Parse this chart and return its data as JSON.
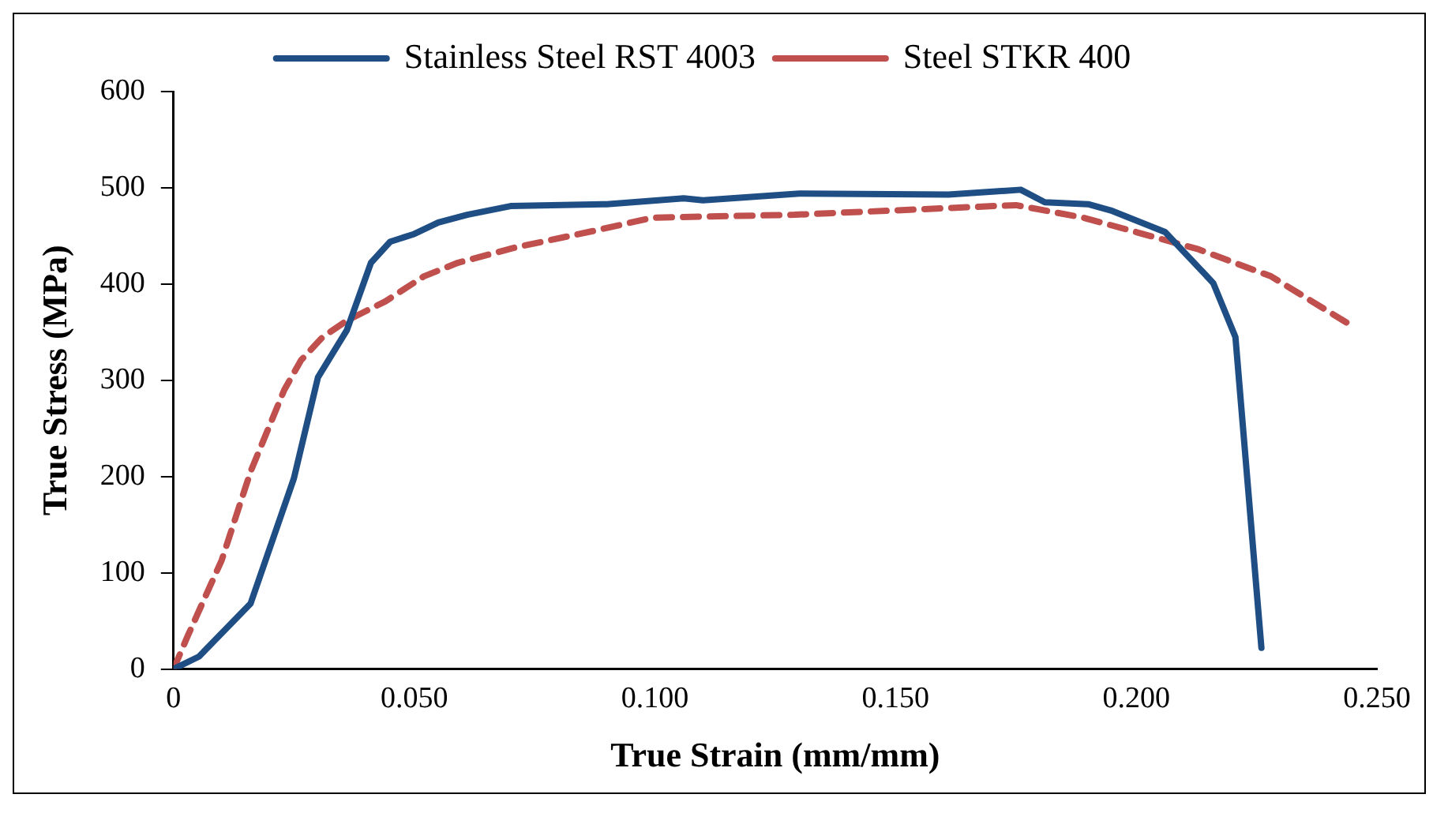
{
  "chart_data": {
    "type": "line",
    "xlabel": "True Strain (mm/mm)",
    "ylabel": "True Stress (MPa)",
    "xlim": [
      0,
      0.25
    ],
    "xticks": [
      0,
      {
        "value": 0.05,
        "label": "0.050"
      },
      {
        "value": 0.1,
        "label": "0.100"
      },
      {
        "value": 0.15,
        "label": "0.150"
      },
      {
        "value": 0.2,
        "label": "0.200"
      },
      {
        "value": 0.25,
        "label": "0.250"
      }
    ],
    "ylim": [
      0,
      600
    ],
    "yticks": [
      0,
      100,
      200,
      300,
      400,
      500,
      600
    ],
    "grid": false,
    "legend": "top",
    "marker": "none",
    "series": [
      {
        "name": "Stainless Steel RST 4003",
        "color": "#1f4e85",
        "line_style": "solid",
        "x": [
          0,
          0.0053,
          0.016,
          0.025,
          0.03,
          0.036,
          0.041,
          0.045,
          0.05,
          0.055,
          0.061,
          0.07,
          0.09,
          0.106,
          0.11,
          0.13,
          0.161,
          0.176,
          0.181,
          0.19,
          0.195,
          0.206,
          0.216,
          0.2206,
          0.226
        ],
        "values": [
          0,
          13,
          68,
          198,
          303,
          352,
          422,
          444,
          452,
          464,
          472,
          481,
          483,
          489,
          487,
          494,
          493,
          498,
          485,
          483,
          476,
          454,
          401,
          345,
          22
        ]
      },
      {
        "name": "Steel STKR 400",
        "color": "#c0504d",
        "line_style": "dashed",
        "x": [
          0,
          0.003,
          0.01,
          0.016,
          0.023,
          0.0265,
          0.031,
          0.036,
          0.044,
          0.052,
          0.059,
          0.071,
          0.088,
          0.0995,
          0.129,
          0.175,
          0.189,
          0.2,
          0.213,
          0.228,
          0.245
        ],
        "values": [
          0,
          35,
          113,
          205,
          290,
          321,
          345,
          362,
          382,
          408,
          422,
          438,
          456,
          469,
          472,
          482,
          469,
          454,
          436,
          408,
          356
        ]
      }
    ]
  }
}
